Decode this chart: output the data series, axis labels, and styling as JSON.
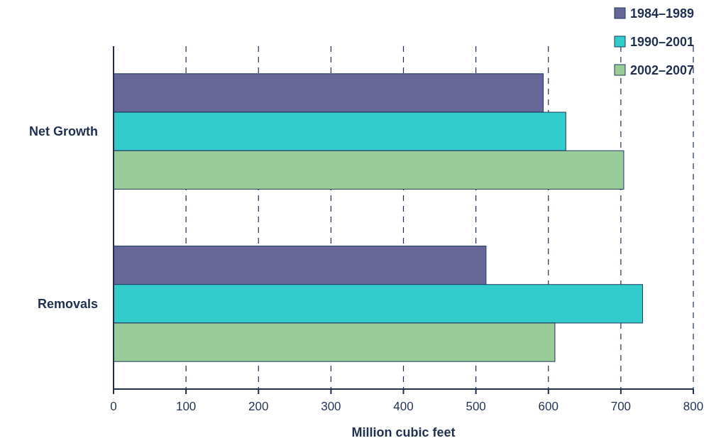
{
  "chart_data": {
    "type": "bar",
    "orientation": "horizontal",
    "xlabel": "Million cubic feet",
    "categories": [
      "Net Growth",
      "Removals"
    ],
    "series": [
      {
        "name": "1984–1989",
        "color": "#666699",
        "values": [
          593,
          514
        ]
      },
      {
        "name": "1990–2001",
        "color": "#33cccc",
        "values": [
          624,
          730
        ]
      },
      {
        "name": "2002–2007",
        "color": "#99cc99",
        "values": [
          704,
          609
        ]
      }
    ],
    "xlim": [
      0,
      800
    ],
    "xticks": [
      0,
      100,
      200,
      300,
      400,
      500,
      600,
      700,
      800
    ],
    "grid": "x",
    "legend": "top right"
  }
}
